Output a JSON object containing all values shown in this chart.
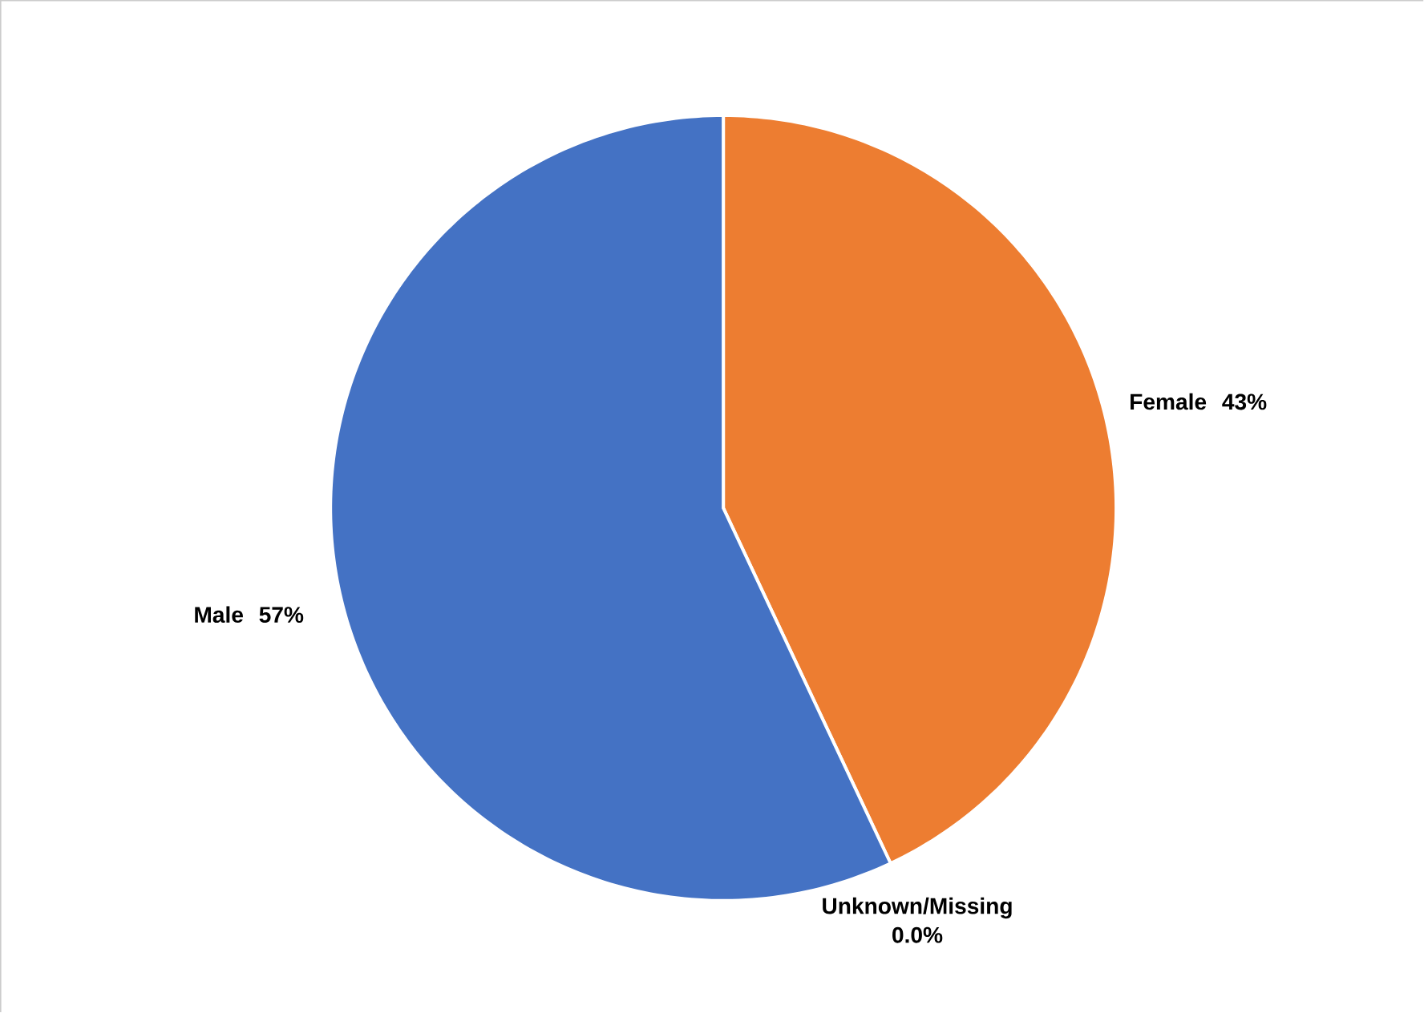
{
  "chart_data": {
    "type": "pie",
    "categories": [
      "Female",
      "Unknown/Missing",
      "Male"
    ],
    "values": [
      43,
      0,
      57
    ],
    "colors": [
      "#ed7d31",
      "#a5a5a5",
      "#4472c4"
    ],
    "data_labels": true,
    "value_labels": [
      "43%",
      "0.0%",
      "57%"
    ]
  }
}
